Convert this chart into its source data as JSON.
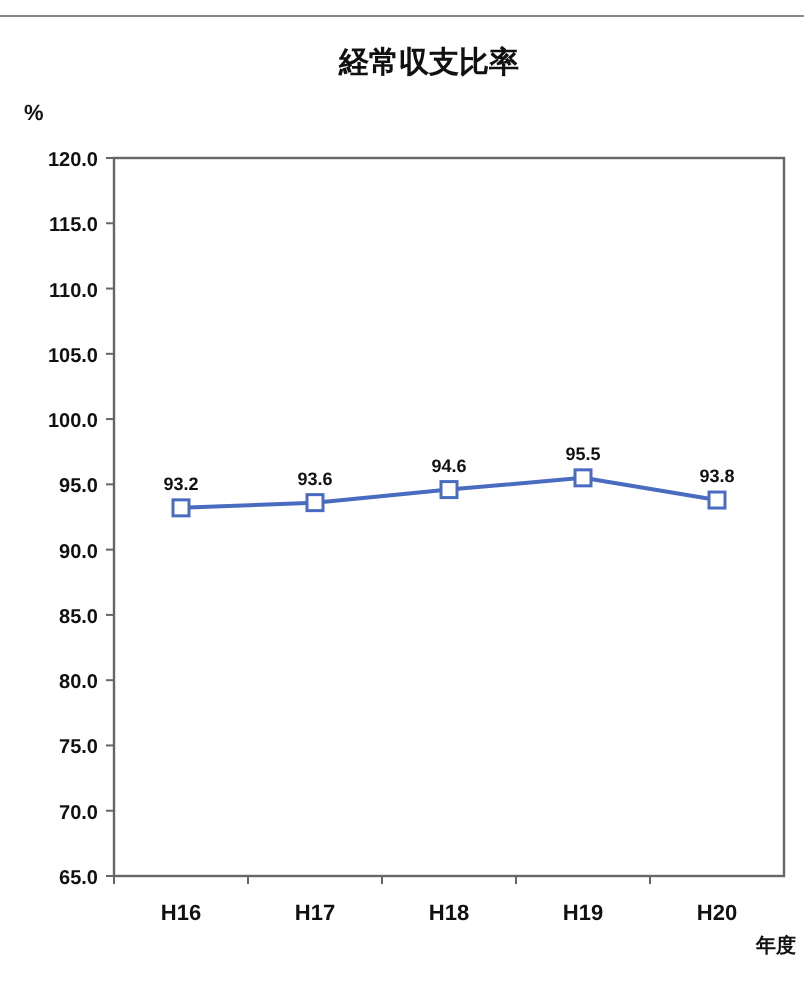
{
  "chart_data": {
    "type": "line",
    "title": "経常収支比率",
    "ylabel": "%",
    "xlabel": "年度",
    "categories": [
      "H16",
      "H17",
      "H18",
      "H19",
      "H20"
    ],
    "series": [
      {
        "color": "#4a6cc0",
        "values": [
          93.2,
          93.6,
          94.6,
          95.5,
          93.8
        ]
      }
    ],
    "ylim": [
      65,
      120
    ],
    "yticks": [
      {
        "value": 65,
        "label": "65.0"
      },
      {
        "value": 70,
        "label": "70.0"
      },
      {
        "value": 75,
        "label": "75.0"
      },
      {
        "value": 80,
        "label": "80.0"
      },
      {
        "value": 85,
        "label": "85.0"
      },
      {
        "value": 90,
        "label": "90.0"
      },
      {
        "value": 95,
        "label": "95.0"
      },
      {
        "value": 100,
        "label": "100.0"
      },
      {
        "value": 105,
        "label": "105.0"
      },
      {
        "value": 110,
        "label": "110.0"
      },
      {
        "value": 115,
        "label": "115.0"
      },
      {
        "value": 120,
        "label": "120.0"
      }
    ],
    "data_labels": true,
    "marker": "square",
    "grid": false
  }
}
